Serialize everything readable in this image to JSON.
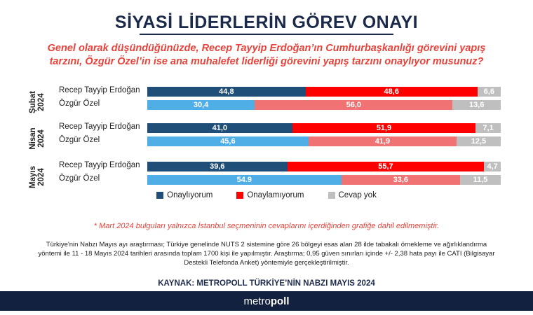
{
  "header": {
    "title": "SİYASİ LİDERLERİN GÖREV ONAYI",
    "subtitle_line1": "Genel olarak düşündüğünüzde, Recep Tayyip Erdoğan’ın Cumhurbaşkanlığı görevini yapış",
    "subtitle_line2": "tarzını, Özgür Özel’in ise ana muhalefet liderliği görevini yapış tarzını onaylıyor musunuz?"
  },
  "chart_data": {
    "type": "bar",
    "stacked": true,
    "orientation": "horizontal",
    "periods": [
      {
        "period": "Şubat\n2024",
        "rows": [
          {
            "leader": "Recep Tayyip Erdoğan",
            "values": [
              44.8,
              48.6,
              6.6
            ],
            "labels": [
              "44,8",
              "48,6",
              "6,6"
            ]
          },
          {
            "leader": "Özgür Özel",
            "values": [
              30.4,
              56.0,
              13.6
            ],
            "labels": [
              "30,4",
              "56,0",
              "13,6"
            ]
          }
        ]
      },
      {
        "period": "Nisan\n2024",
        "rows": [
          {
            "leader": "Recep Tayyip Erdoğan",
            "values": [
              41.0,
              51.9,
              7.1
            ],
            "labels": [
              "41,0",
              "51,9",
              "7,1"
            ]
          },
          {
            "leader": "Özgür Özel",
            "values": [
              45.6,
              41.9,
              12.5
            ],
            "labels": [
              "45,6",
              "41,9",
              "12,5"
            ]
          }
        ]
      },
      {
        "period": "Mayıs\n2024",
        "rows": [
          {
            "leader": "Recep Tayyip Erdoğan",
            "values": [
              39.6,
              55.7,
              4.7
            ],
            "labels": [
              "39,6",
              "55,7",
              "4,7"
            ]
          },
          {
            "leader": "Özgür Özel",
            "values": [
              54.9,
              33.6,
              11.5
            ],
            "labels": [
              "54.9",
              "33,6",
              "11,5"
            ]
          }
        ]
      }
    ],
    "series": [
      {
        "name": "Onaylıyorum"
      },
      {
        "name": "Onaylamıyorum"
      },
      {
        "name": "Cevap yok"
      }
    ],
    "colors": {
      "erdogan": [
        "#1f4e79",
        "#ff0000",
        "#bfbfbf"
      ],
      "ozel": [
        "#4eaee5",
        "#f07272",
        "#bfbfbf"
      ]
    },
    "legend_colors": [
      "#1f4e79",
      "#ff0000",
      "#bfbfbf"
    ],
    "legend_position": "bottom-center",
    "xlim": [
      0,
      100
    ]
  },
  "notes": {
    "footnote": "* Mart 2024 bulguları yalnızca İstanbul seçmeninin cevaplarını içerdiğinden grafiğe dahil edilmemiştir.",
    "method_line1": "Türkiye'nin Nabzı Mayıs ayı araştırması; Türkiye genelinde NUTS 2 sistemine göre 26 bölgeyi esas alan 28 ilde tabakalı örnekleme ve ağırlıklandırma",
    "method_line2": "yöntemi ile 11 - 18 Mayıs 2024 tarihleri arasında toplam 1700 kişi ile yapılmıştır. Araştırma; 0,95 güven sınırları içinde +/- 2,38 hata payı ile CATI (Bilgisayar",
    "method_line3": "Destekli Telefonda Anket)  yöntemiyle gerçekleştirilmiştir.",
    "source": "KAYNAK: METROPOLL TÜRKİYE’NİN NABZI MAYIS 2024"
  },
  "footer": {
    "brand_light": "metro",
    "brand_bold": "poll"
  }
}
